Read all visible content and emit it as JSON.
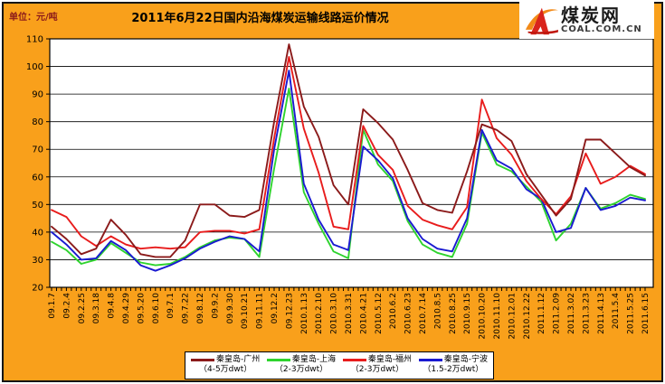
{
  "header": {
    "unit_label": "单位：元/吨",
    "title": "2011年6月22日国内沿海煤炭运输线路运价情况"
  },
  "logo": {
    "name": "煤炭网",
    "domain": "COAL.COM.CN"
  },
  "colors": {
    "background": "#F9A01B",
    "plot_background": "#FFFFFF",
    "grid": "#000000",
    "unit_text": "#8B1A1A"
  },
  "chart_data": {
    "type": "line",
    "title": "2011年6月22日国内沿海煤炭运输线路运价情况",
    "unit": "元/吨",
    "ylim": [
      20,
      110
    ],
    "yticks": [
      20,
      30,
      40,
      50,
      60,
      70,
      80,
      90,
      100,
      110
    ],
    "grid": true,
    "legend_position": "bottom",
    "categories": [
      "09.1.7",
      "09.2.4",
      "09.2.25",
      "09.3.18",
      "09.4.8",
      "09.4.29",
      "09.5.20",
      "09.6.10",
      "09.7.1",
      "09.7.22",
      "09.8.12",
      "09.9.2",
      "09.9.30",
      "09.10.21",
      "09.11.11",
      "09.12.2",
      "09.12.23",
      "2010.1.13",
      "2010.2.10",
      "2010.3.10",
      "2010.3.31",
      "2010.4.21",
      "2010.5.12",
      "2010.6.2",
      "2010.6.23",
      "2010.7.14",
      "2010.8.5",
      "2010.8.25",
      "2010.9.15",
      "2010.10.20",
      "2010.11.10",
      "2010.12.01",
      "2010.12.22",
      "2011.1.12",
      "2011.2.09",
      "2011.3.02",
      "2011.3.23",
      "2011.4.13",
      "2011.5.4",
      "2011.5.25",
      "2011.6.15"
    ],
    "series": [
      {
        "name": "秦皇岛-广州",
        "sub": "（4-5万dwt）",
        "color": "#8B1A1A",
        "values": [
          42,
          37.5,
          32,
          34,
          44.5,
          39,
          32,
          31,
          31,
          37,
          50,
          50,
          46,
          45.5,
          48,
          80,
          108,
          85.5,
          74.5,
          57,
          50,
          84.5,
          79.5,
          73.5,
          62.5,
          50.5,
          48,
          47,
          62,
          79,
          77,
          73,
          61,
          53.5,
          46,
          52,
          73.5,
          73.5,
          68.5,
          63.5,
          60.5
        ]
      },
      {
        "name": "秦皇岛-上海",
        "sub": "（2-3万dwt）",
        "color": "#2ED32E",
        "values": [
          36.5,
          33.5,
          28.5,
          30,
          36,
          32.5,
          29,
          28,
          28.5,
          31,
          34.5,
          37,
          38,
          37.5,
          31,
          63,
          92,
          54.5,
          43,
          33,
          30.5,
          77,
          64.5,
          58.5,
          44,
          35.5,
          32.5,
          31,
          43,
          76,
          64.5,
          62,
          56.5,
          51,
          37,
          43,
          56,
          48.5,
          50.5,
          53.5,
          52
        ]
      },
      {
        "name": "秦皇岛-福州",
        "sub": "（2-3万dwt）",
        "color": "#E81C1C",
        "values": [
          48,
          45.5,
          38.5,
          35,
          38.5,
          35.5,
          34,
          34.5,
          34,
          34.5,
          40,
          40.5,
          40.5,
          39.5,
          41,
          74,
          103.5,
          77.5,
          61.5,
          42,
          41,
          78.5,
          68,
          62.5,
          49.5,
          44.5,
          42.5,
          41,
          49,
          88,
          74,
          68,
          58.5,
          52,
          46.5,
          53,
          68.5,
          57.5,
          60,
          64,
          61
        ]
      },
      {
        "name": "秦皇岛-宁波",
        "sub": "（1.5-2万dwt）",
        "color": "#1A1AD1",
        "values": [
          40,
          35.5,
          30,
          30.5,
          36.8,
          33.5,
          28,
          26,
          28,
          30.5,
          34,
          36.5,
          38.5,
          37.5,
          33,
          70,
          98.5,
          57.5,
          44.5,
          35.5,
          33.5,
          71,
          66,
          59.5,
          45,
          37.5,
          34,
          33,
          45,
          77,
          66,
          63,
          55.5,
          52,
          40,
          41.5,
          56,
          48,
          49.5,
          52.5,
          51.5
        ]
      }
    ]
  }
}
